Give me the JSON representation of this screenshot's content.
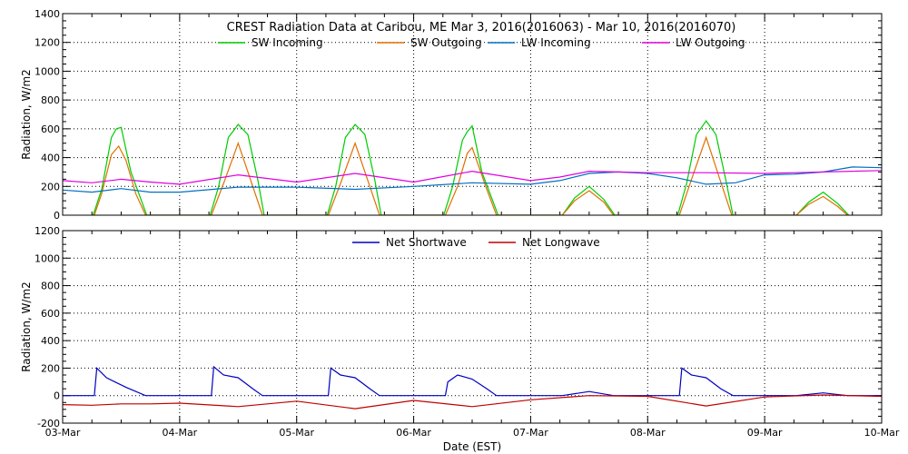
{
  "chart_data": {
    "title": "CREST Radiation Data at Caribou, ME   Mar  3, 2016(2016063) - Mar 10, 2016(2016070)",
    "xlabel": "Date (EST)",
    "x_tick_labels": [
      "03-Mar",
      "04-Mar",
      "05-Mar",
      "06-Mar",
      "07-Mar",
      "08-Mar",
      "09-Mar",
      "10-Mar"
    ],
    "xlim": [
      "2016-03-03",
      "2016-03-10"
    ],
    "grid": true,
    "panels": [
      {
        "type": "line",
        "ylabel": "Radiation, W/m2",
        "ylim": [
          0,
          1400
        ],
        "yticks": [
          0,
          200,
          400,
          600,
          800,
          1000,
          1200,
          1400
        ],
        "legend": "top",
        "series": [
          {
            "name": "SW Incoming",
            "color": "#00cc00",
            "x": [
              "2016-03-03T06:15",
              "2016-03-03T08:00",
              "2016-03-03T10:00",
              "2016-03-03T11:00",
              "2016-03-03T12:00",
              "2016-03-03T14:00",
              "2016-03-03T17:15",
              "2016-03-04T06:15",
              "2016-03-04T08:00",
              "2016-03-04T10:00",
              "2016-03-04T12:00",
              "2016-03-04T14:00",
              "2016-03-04T16:00",
              "2016-03-04T17:20",
              "2016-03-05T06:15",
              "2016-03-05T08:00",
              "2016-03-05T10:00",
              "2016-03-05T12:00",
              "2016-03-05T14:00",
              "2016-03-05T16:00",
              "2016-03-05T17:20",
              "2016-03-06T06:10",
              "2016-03-06T08:00",
              "2016-03-06T10:00",
              "2016-03-06T11:00",
              "2016-03-06T12:00",
              "2016-03-06T14:00",
              "2016-03-06T17:20",
              "2016-03-07T06:30",
              "2016-03-07T09:00",
              "2016-03-07T12:00",
              "2016-03-07T15:00",
              "2016-03-07T17:15",
              "2016-03-08T06:10",
              "2016-03-08T08:00",
              "2016-03-08T10:00",
              "2016-03-08T12:00",
              "2016-03-08T14:00",
              "2016-03-08T16:00",
              "2016-03-08T17:30",
              "2016-03-09T06:30",
              "2016-03-09T09:00",
              "2016-03-09T12:00",
              "2016-03-09T15:00",
              "2016-03-09T17:15"
            ],
            "y": [
              0,
              180,
              540,
              600,
              610,
              300,
              0,
              0,
              200,
              540,
              630,
              560,
              250,
              0,
              0,
              200,
              540,
              630,
              560,
              250,
              0,
              0,
              200,
              520,
              580,
              620,
              300,
              0,
              0,
              120,
              200,
              110,
              0,
              0,
              220,
              560,
              655,
              560,
              250,
              0,
              0,
              90,
              160,
              80,
              0
            ]
          },
          {
            "name": "SW Outgoing",
            "color": "#e07000",
            "x": [
              "2016-03-03T06:30",
              "2016-03-03T08:00",
              "2016-03-03T10:00",
              "2016-03-03T11:30",
              "2016-03-03T13:00",
              "2016-03-03T15:00",
              "2016-03-03T17:00",
              "2016-03-04T06:30",
              "2016-03-04T09:00",
              "2016-03-04T12:00",
              "2016-03-04T15:00",
              "2016-03-04T17:00",
              "2016-03-05T06:30",
              "2016-03-05T09:00",
              "2016-03-05T12:00",
              "2016-03-05T15:00",
              "2016-03-05T17:00",
              "2016-03-06T06:30",
              "2016-03-06T09:00",
              "2016-03-06T11:00",
              "2016-03-06T12:00",
              "2016-03-06T15:00",
              "2016-03-06T17:00",
              "2016-03-07T06:30",
              "2016-03-07T09:00",
              "2016-03-07T12:00",
              "2016-03-07T15:00",
              "2016-03-07T17:00",
              "2016-03-08T06:30",
              "2016-03-08T09:00",
              "2016-03-08T12:00",
              "2016-03-08T15:00",
              "2016-03-08T17:15",
              "2016-03-09T06:30",
              "2016-03-09T09:00",
              "2016-03-09T12:00",
              "2016-03-09T15:00",
              "2016-03-09T17:00"
            ],
            "y": [
              0,
              150,
              420,
              480,
              380,
              150,
              0,
              0,
              220,
              500,
              200,
              0,
              0,
              220,
              500,
              200,
              0,
              0,
              200,
              430,
              470,
              180,
              0,
              0,
              100,
              170,
              90,
              0,
              0,
              250,
              540,
              230,
              0,
              0,
              75,
              130,
              60,
              0
            ]
          },
          {
            "name": "LW Incoming",
            "color": "#0070c0",
            "x": [
              "2016-03-03T00:00",
              "2016-03-03T06:00",
              "2016-03-03T12:00",
              "2016-03-03T18:00",
              "2016-03-04T00:00",
              "2016-03-04T12:00",
              "2016-03-05T00:00",
              "2016-03-05T12:00",
              "2016-03-06T00:00",
              "2016-03-06T12:00",
              "2016-03-07T00:00",
              "2016-03-07T06:00",
              "2016-03-07T12:00",
              "2016-03-07T18:00",
              "2016-03-08T00:00",
              "2016-03-08T06:00",
              "2016-03-08T12:00",
              "2016-03-08T18:00",
              "2016-03-09T00:00",
              "2016-03-09T06:00",
              "2016-03-09T12:00",
              "2016-03-09T18:00",
              "2016-03-10T00:00"
            ],
            "y": [
              175,
              160,
              185,
              160,
              160,
              195,
              195,
              180,
              200,
              225,
              215,
              240,
              290,
              300,
              290,
              260,
              215,
              225,
              280,
              285,
              300,
              335,
              330
            ]
          },
          {
            "name": "LW Outgoing",
            "color": "#e000e0",
            "x": [
              "2016-03-03T00:00",
              "2016-03-03T06:00",
              "2016-03-03T12:00",
              "2016-03-03T18:00",
              "2016-03-04T00:00",
              "2016-03-04T12:00",
              "2016-03-05T00:00",
              "2016-03-05T12:00",
              "2016-03-06T00:00",
              "2016-03-06T12:00",
              "2016-03-07T00:00",
              "2016-03-07T06:00",
              "2016-03-07T12:00",
              "2016-03-07T18:00",
              "2016-03-08T00:00",
              "2016-03-08T12:00",
              "2016-03-09T00:00",
              "2016-03-09T12:00",
              "2016-03-10T00:00"
            ],
            "y": [
              240,
              225,
              250,
              230,
              215,
              280,
              230,
              290,
              230,
              305,
              240,
              265,
              305,
              300,
              295,
              295,
              290,
              300,
              310
            ]
          }
        ]
      },
      {
        "type": "line",
        "ylabel": "Radiation, W/m2",
        "ylim": [
          -200,
          1200
        ],
        "yticks": [
          -200,
          0,
          200,
          400,
          600,
          800,
          1000,
          1200
        ],
        "legend": "top",
        "series": [
          {
            "name": "Net Shortwave",
            "color": "#0000c0",
            "x": [
              "2016-03-03T00:00",
              "2016-03-03T06:30",
              "2016-03-03T07:00",
              "2016-03-03T09:00",
              "2016-03-03T13:00",
              "2016-03-03T17:00",
              "2016-03-03T17:30",
              "2016-03-04T06:30",
              "2016-03-04T07:00",
              "2016-03-04T09:00",
              "2016-03-04T12:00",
              "2016-03-04T15:00",
              "2016-03-04T17:00",
              "2016-03-05T06:30",
              "2016-03-05T07:00",
              "2016-03-05T09:00",
              "2016-03-05T12:00",
              "2016-03-05T15:00",
              "2016-03-05T17:00",
              "2016-03-06T06:30",
              "2016-03-06T07:00",
              "2016-03-06T09:00",
              "2016-03-06T12:00",
              "2016-03-06T15:00",
              "2016-03-06T17:00",
              "2016-03-07T06:30",
              "2016-03-07T12:00",
              "2016-03-07T17:00",
              "2016-03-08T06:30",
              "2016-03-08T07:00",
              "2016-03-08T09:00",
              "2016-03-08T12:00",
              "2016-03-08T15:00",
              "2016-03-08T17:30",
              "2016-03-09T06:30",
              "2016-03-09T12:00",
              "2016-03-09T17:00",
              "2016-03-10T00:00"
            ],
            "y": [
              0,
              0,
              200,
              130,
              60,
              0,
              0,
              0,
              210,
              150,
              130,
              50,
              0,
              0,
              200,
              150,
              130,
              50,
              0,
              0,
              100,
              150,
              120,
              50,
              0,
              0,
              30,
              0,
              0,
              200,
              150,
              130,
              50,
              0,
              0,
              20,
              0,
              0
            ]
          },
          {
            "name": "Net Longwave",
            "color": "#c00000",
            "x": [
              "2016-03-03T00:00",
              "2016-03-03T06:00",
              "2016-03-03T12:00",
              "2016-03-03T18:00",
              "2016-03-04T00:00",
              "2016-03-04T12:00",
              "2016-03-05T00:00",
              "2016-03-05T12:00",
              "2016-03-06T00:00",
              "2016-03-06T12:00",
              "2016-03-07T00:00",
              "2016-03-07T12:00",
              "2016-03-08T00:00",
              "2016-03-08T12:00",
              "2016-03-09T00:00",
              "2016-03-09T12:00",
              "2016-03-10T00:00"
            ],
            "y": [
              -65,
              -70,
              -60,
              -60,
              -55,
              -80,
              -40,
              -95,
              -35,
              -80,
              -30,
              0,
              -5,
              -75,
              -10,
              5,
              -5
            ]
          }
        ]
      }
    ]
  }
}
